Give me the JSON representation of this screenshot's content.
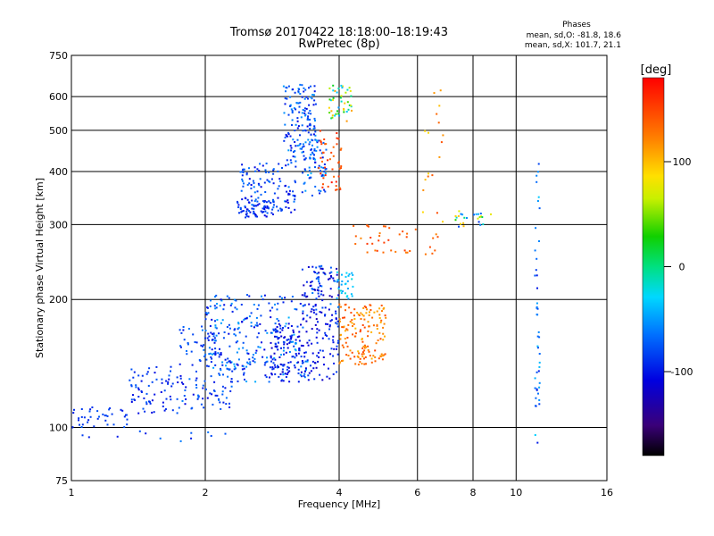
{
  "chart_data": {
    "type": "scatter",
    "title": "Tromsø 20170422 18:18:00–18:19:43",
    "subtitle": "RwPretec (8p)",
    "xlabel": "Frequency [MHz]",
    "ylabel": "Stationary phase Virtual Height [km]",
    "x_scale": "log",
    "y_scale": "log",
    "xlim": [
      1,
      16
    ],
    "ylim": [
      75,
      750
    ],
    "x_ticks": [
      1,
      2,
      4,
      6,
      8,
      10,
      16
    ],
    "x_tick_labels": [
      "1",
      "2",
      "4",
      "6",
      "8",
      "10",
      "16"
    ],
    "y_ticks": [
      75,
      100,
      200,
      300,
      400,
      500,
      600,
      750
    ],
    "y_tick_labels": [
      "75",
      "100",
      "200",
      "300",
      "400",
      "500",
      "600",
      "750"
    ],
    "grid": true,
    "stats": {
      "heading": "Phases",
      "line1": "mean, sd,O: -81.8, 18.6",
      "line2": "mean, sd,X: 101.7, 21.1"
    },
    "colorbar": {
      "label": "[deg]",
      "vmin": -180,
      "vmax": 180,
      "ticks": [
        100,
        0,
        -100
      ],
      "tick_labels": [
        "100",
        "0",
        "-100"
      ],
      "colormap": "rainbow"
    },
    "clusters": [
      {
        "x": [
          1.0,
          1.35
        ],
        "y": [
          100,
          112
        ],
        "phase": [
          -100,
          -70
        ],
        "n": 40
      },
      {
        "x": [
          1.35,
          1.75
        ],
        "y": [
          107,
          140
        ],
        "phase": [
          -110,
          -70
        ],
        "n": 70
      },
      {
        "x": [
          1.75,
          2.3
        ],
        "y": [
          110,
          175
        ],
        "phase": [
          -110,
          -60
        ],
        "n": 120
      },
      {
        "x": [
          2.0,
          3.4
        ],
        "y": [
          128,
          205
        ],
        "phase": [
          -110,
          -40
        ],
        "n": 260
      },
      {
        "x": [
          2.8,
          4.0
        ],
        "y": [
          128,
          175
        ],
        "phase": [
          -120,
          -80
        ],
        "n": 160
      },
      {
        "x": [
          3.3,
          4.0
        ],
        "y": [
          175,
          240
        ],
        "phase": [
          -130,
          -60
        ],
        "n": 110
      },
      {
        "x": [
          3.9,
          4.3
        ],
        "y": [
          200,
          235
        ],
        "phase": [
          -50,
          -20
        ],
        "n": 30
      },
      {
        "x": [
          4.0,
          5.1
        ],
        "y": [
          140,
          195
        ],
        "phase": [
          100,
          150
        ],
        "n": 150
      },
      {
        "x": [
          4.3,
          6.7
        ],
        "y": [
          255,
          300
        ],
        "phase": [
          120,
          160
        ],
        "n": 40
      },
      {
        "x": [
          7.3,
          8.8
        ],
        "y": [
          295,
          325
        ],
        "phase": [
          -100,
          120
        ],
        "n": 25
      },
      {
        "x": [
          2.35,
          2.85
        ],
        "y": [
          310,
          345
        ],
        "phase": [
          -110,
          -70
        ],
        "n": 60
      },
      {
        "x": [
          2.4,
          3.2
        ],
        "y": [
          320,
          420
        ],
        "phase": [
          -110,
          -60
        ],
        "n": 120
      },
      {
        "x": [
          3.0,
          3.55
        ],
        "y": [
          420,
          640
        ],
        "phase": [
          -110,
          -50
        ],
        "n": 150
      },
      {
        "x": [
          3.3,
          3.75
        ],
        "y": [
          350,
          480
        ],
        "phase": [
          -100,
          -40
        ],
        "n": 60
      },
      {
        "x": [
          3.6,
          4.05
        ],
        "y": [
          360,
          500
        ],
        "phase": [
          130,
          170
        ],
        "n": 45
      },
      {
        "x": [
          3.8,
          4.3
        ],
        "y": [
          520,
          640
        ],
        "phase": [
          -60,
          120
        ],
        "n": 45
      },
      {
        "x": [
          11.0,
          11.3
        ],
        "y": [
          92,
          420
        ],
        "phase": [
          -100,
          -30
        ],
        "n": 45
      },
      {
        "x": [
          1.0,
          2.7
        ],
        "y": [
          92,
          98
        ],
        "phase": [
          -100,
          -60
        ],
        "n": 12
      },
      {
        "x": [
          6.1,
          6.9
        ],
        "y": [
          300,
          640
        ],
        "phase": [
          80,
          150
        ],
        "n": 18
      }
    ]
  }
}
